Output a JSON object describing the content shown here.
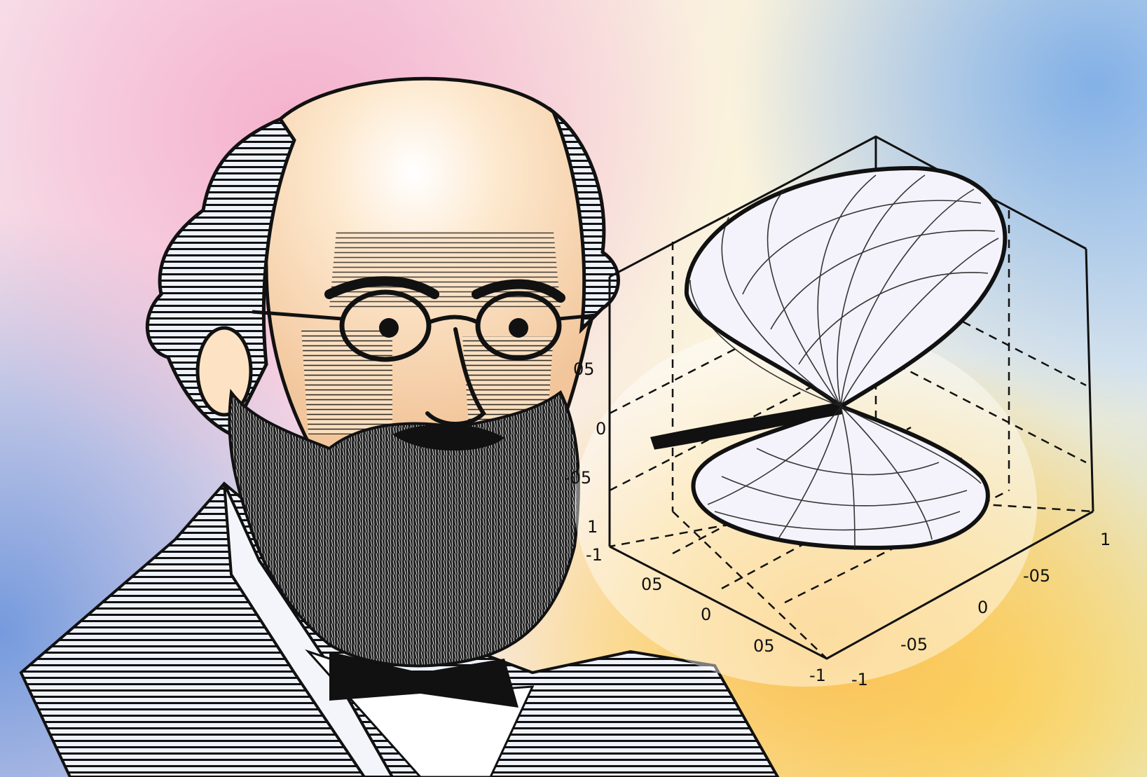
{
  "figure": {
    "subject": "",
    "plot_ticks": {
      "vertical_axis": [
        "05",
        "0",
        "-05",
        "1",
        "-1"
      ],
      "front_left_axis": [
        "05",
        "0",
        "05",
        "-1"
      ],
      "front_right_axis": [
        "1",
        "-05",
        "0",
        "-05",
        "-1"
      ]
    },
    "colors": {
      "ink": "#111111",
      "skin": "#f6d2a8",
      "warm_glow": "#f8bf57",
      "pink_glow": "#f4b0c8",
      "blue_glow": "#7aa7de"
    }
  }
}
